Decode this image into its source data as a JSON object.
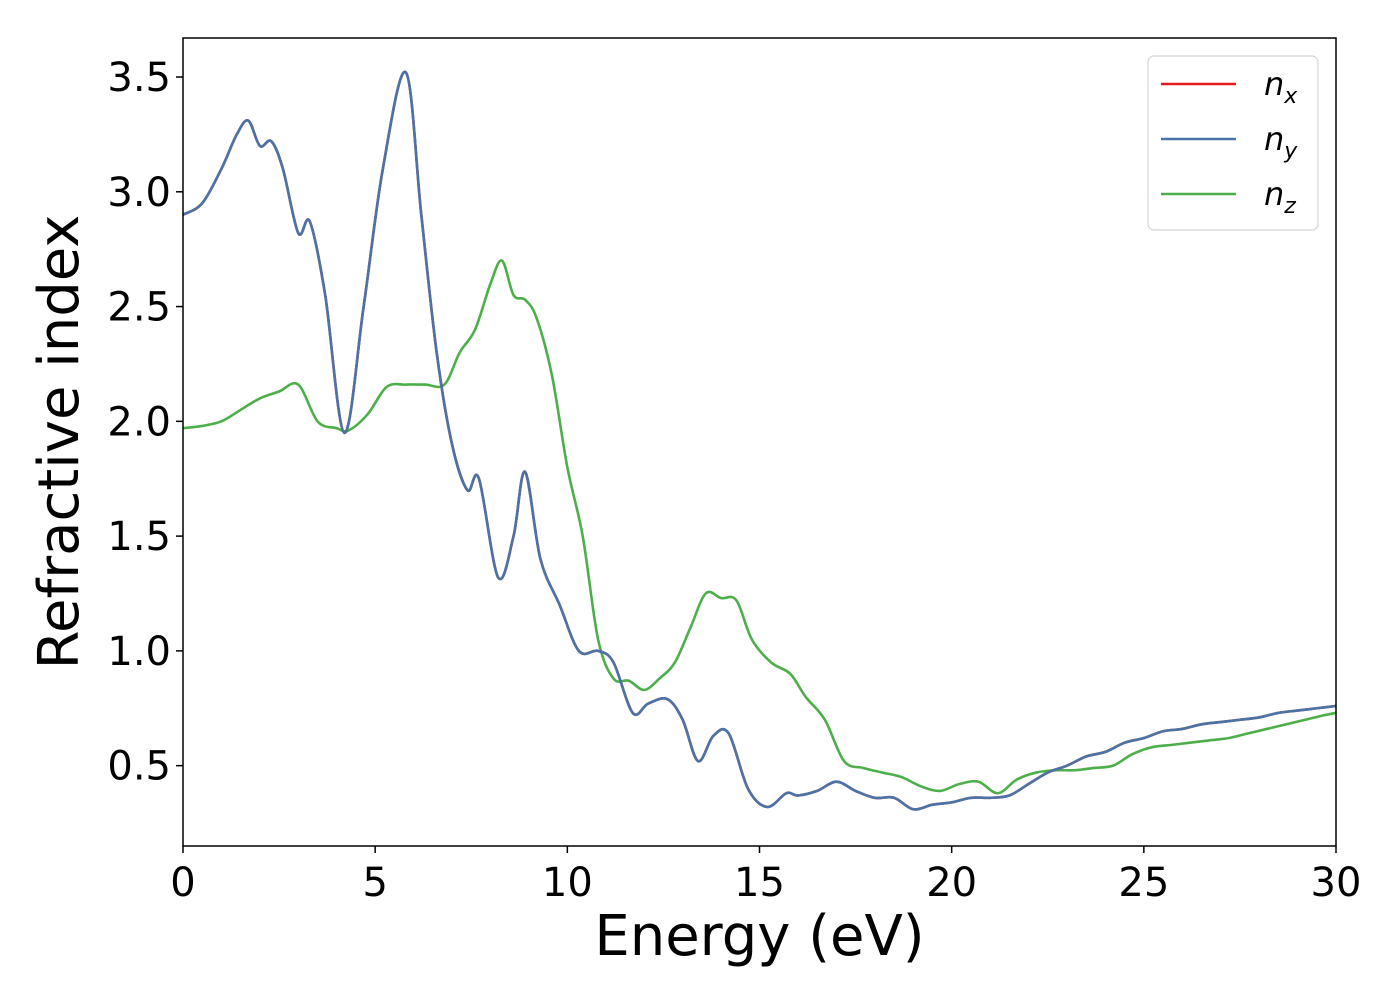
{
  "chart_data": {
    "type": "line",
    "title": "",
    "xlabel": "Energy (eV)",
    "ylabel": "Refractive index",
    "xlim": [
      0,
      30
    ],
    "ylim": [
      0.15,
      3.67
    ],
    "xticks": [
      0,
      5,
      10,
      15,
      20,
      25,
      30
    ],
    "xtick_labels": [
      "0",
      "5",
      "10",
      "15",
      "20",
      "25",
      "30"
    ],
    "yticks": [
      0.5,
      1.0,
      1.5,
      2.0,
      2.5,
      3.0,
      3.5
    ],
    "ytick_labels": [
      "0.5",
      "1.0",
      "1.5",
      "2.0",
      "2.5",
      "3.0",
      "3.5"
    ],
    "grid": false,
    "legend_position": "top-right",
    "series": [
      {
        "name": "n_x",
        "legend_base": "n",
        "legend_sub": "x",
        "color": "#e41a1c",
        "x": [
          0,
          0.5,
          1,
          1.4,
          1.7,
          2,
          2.3,
          2.6,
          3,
          3.3,
          3.7,
          4.2,
          4.7,
          5.2,
          5.8,
          6.2,
          6.6,
          7,
          7.4,
          7.7,
          8.2,
          8.6,
          8.9,
          9.3,
          9.8,
          10.3,
          10.8,
          11.2,
          11.7,
          12.1,
          12.6,
          13,
          13.4,
          13.8,
          14.2,
          14.7,
          15.2,
          15.7,
          16,
          16.5,
          17,
          17.5,
          18,
          18.5,
          19,
          19.5,
          20,
          20.5,
          21,
          21.5,
          22,
          22.5,
          23,
          23.5,
          24,
          24.5,
          25,
          25.5,
          26,
          26.5,
          27,
          27.5,
          28,
          28.5,
          29,
          29.5,
          30
        ],
        "y": [
          2.9,
          2.95,
          3.1,
          3.25,
          3.31,
          3.2,
          3.22,
          3.1,
          2.82,
          2.87,
          2.55,
          1.95,
          2.5,
          3.1,
          3.52,
          2.9,
          2.3,
          1.9,
          1.7,
          1.75,
          1.32,
          1.5,
          1.78,
          1.4,
          1.2,
          1.0,
          1.0,
          0.95,
          0.73,
          0.77,
          0.79,
          0.7,
          0.52,
          0.63,
          0.64,
          0.4,
          0.32,
          0.38,
          0.37,
          0.39,
          0.43,
          0.39,
          0.36,
          0.36,
          0.31,
          0.33,
          0.34,
          0.36,
          0.36,
          0.37,
          0.42,
          0.47,
          0.5,
          0.54,
          0.56,
          0.6,
          0.62,
          0.65,
          0.66,
          0.68,
          0.69,
          0.7,
          0.71,
          0.73,
          0.74,
          0.75,
          0.76
        ]
      },
      {
        "name": "n_y",
        "legend_base": "n",
        "legend_sub": "y",
        "color": "#4a74a8",
        "x": [
          0,
          0.5,
          1,
          1.4,
          1.7,
          2,
          2.3,
          2.6,
          3,
          3.3,
          3.7,
          4.2,
          4.7,
          5.2,
          5.8,
          6.2,
          6.6,
          7,
          7.4,
          7.7,
          8.2,
          8.6,
          8.9,
          9.3,
          9.8,
          10.3,
          10.8,
          11.2,
          11.7,
          12.1,
          12.6,
          13,
          13.4,
          13.8,
          14.2,
          14.7,
          15.2,
          15.7,
          16,
          16.5,
          17,
          17.5,
          18,
          18.5,
          19,
          19.5,
          20,
          20.5,
          21,
          21.5,
          22,
          22.5,
          23,
          23.5,
          24,
          24.5,
          25,
          25.5,
          26,
          26.5,
          27,
          27.5,
          28,
          28.5,
          29,
          29.5,
          30
        ],
        "y": [
          2.9,
          2.95,
          3.1,
          3.25,
          3.31,
          3.2,
          3.22,
          3.1,
          2.82,
          2.87,
          2.55,
          1.95,
          2.5,
          3.1,
          3.52,
          2.9,
          2.3,
          1.9,
          1.7,
          1.75,
          1.32,
          1.5,
          1.78,
          1.4,
          1.2,
          1.0,
          1.0,
          0.95,
          0.73,
          0.77,
          0.79,
          0.7,
          0.52,
          0.63,
          0.64,
          0.4,
          0.32,
          0.38,
          0.37,
          0.39,
          0.43,
          0.39,
          0.36,
          0.36,
          0.31,
          0.33,
          0.34,
          0.36,
          0.36,
          0.37,
          0.42,
          0.47,
          0.5,
          0.54,
          0.56,
          0.6,
          0.62,
          0.65,
          0.66,
          0.68,
          0.69,
          0.7,
          0.71,
          0.73,
          0.74,
          0.75,
          0.76
        ]
      },
      {
        "name": "n_z",
        "legend_base": "n",
        "legend_sub": "z",
        "color": "#4daf4a",
        "x": [
          0,
          0.5,
          1,
          1.5,
          2,
          2.5,
          3,
          3.5,
          4,
          4.3,
          4.8,
          5.3,
          5.8,
          6.3,
          6.8,
          7.2,
          7.6,
          8,
          8.3,
          8.6,
          8.9,
          9.2,
          9.6,
          10,
          10.4,
          10.8,
          11.2,
          11.6,
          12,
          12.4,
          12.8,
          13.2,
          13.6,
          14,
          14.4,
          14.8,
          15.3,
          15.8,
          16.2,
          16.7,
          17.2,
          17.7,
          18.2,
          18.7,
          19.2,
          19.7,
          20.2,
          20.7,
          21.2,
          21.7,
          22.2,
          22.7,
          23.2,
          23.7,
          24.2,
          24.7,
          25.2,
          25.7,
          26.2,
          26.7,
          27.2,
          27.7,
          28.2,
          28.7,
          29.2,
          29.7,
          30
        ],
        "y": [
          1.97,
          1.98,
          2.0,
          2.05,
          2.1,
          2.13,
          2.16,
          2.0,
          1.97,
          1.96,
          2.03,
          2.15,
          2.16,
          2.16,
          2.16,
          2.3,
          2.4,
          2.6,
          2.7,
          2.55,
          2.53,
          2.45,
          2.2,
          1.8,
          1.5,
          1.05,
          0.88,
          0.87,
          0.83,
          0.88,
          0.95,
          1.1,
          1.25,
          1.23,
          1.22,
          1.05,
          0.95,
          0.9,
          0.8,
          0.7,
          0.52,
          0.49,
          0.47,
          0.45,
          0.41,
          0.39,
          0.42,
          0.43,
          0.38,
          0.44,
          0.47,
          0.48,
          0.48,
          0.49,
          0.5,
          0.55,
          0.58,
          0.59,
          0.6,
          0.61,
          0.62,
          0.64,
          0.66,
          0.68,
          0.7,
          0.72,
          0.73
        ]
      }
    ]
  }
}
